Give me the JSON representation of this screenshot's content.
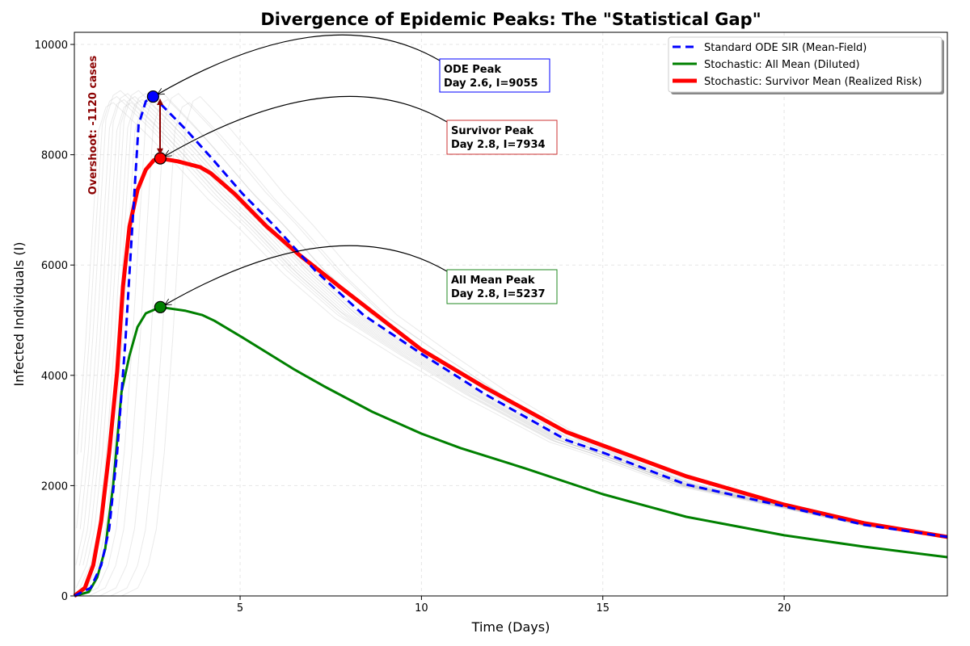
{
  "chart_data": {
    "type": "line",
    "title": "Divergence of Epidemic Peaks: The \"Statistical Gap\"",
    "xlabel": "Time (Days)",
    "ylabel": "Infected Individuals (I)",
    "xlim": [
      0.43,
      24.5
    ],
    "ylim": [
      0,
      10220
    ],
    "xticks": [
      5,
      10,
      15,
      20
    ],
    "yticks": [
      0,
      2000,
      4000,
      6000,
      8000,
      10000
    ],
    "grid": true,
    "legend_position": "top-right",
    "series": [
      {
        "name": "Standard ODE SIR (Mean-Field)",
        "color": "#0000ff",
        "style": "dashed",
        "x": [
          0.43,
          0.88,
          1.17,
          1.39,
          1.61,
          1.84,
          2.0,
          2.2,
          2.4,
          2.6,
          2.84,
          3.5,
          4.2,
          5.07,
          5.96,
          7.07,
          8.4,
          10,
          11.75,
          14,
          15,
          17.3,
          20,
          22.2,
          24.5
        ],
        "y": [
          0,
          146,
          556,
          1215,
          2600,
          4650,
          6400,
          8540,
          8970,
          9055,
          8900,
          8460,
          7950,
          7290,
          6700,
          5900,
          5095,
          4390,
          3660,
          2825,
          2600,
          2020,
          1625,
          1290,
          1070
        ]
      },
      {
        "name": "Stochastic: All Mean (Diluted)",
        "color": "#008000",
        "style": "solid",
        "x": [
          0.43,
          0.83,
          1.06,
          1.28,
          1.5,
          1.73,
          1.95,
          2.17,
          2.4,
          2.8,
          3.5,
          3.95,
          4.29,
          5.07,
          6.51,
          7.3,
          8.64,
          10,
          11.08,
          12.86,
          15,
          17.3,
          20,
          22.2,
          24.5
        ],
        "y": [
          0,
          73,
          337,
          850,
          2020,
          3700,
          4360,
          4875,
          5125,
          5237,
          5170,
          5095,
          4990,
          4685,
          4100,
          3807,
          3340,
          2943,
          2680,
          2313,
          1845,
          1435,
          1100,
          893,
          703
        ]
      },
      {
        "name": "Stochastic: Survivor Mean (Realized Risk)",
        "color": "#ff0000",
        "style": "solid-thick",
        "x": [
          0.43,
          0.72,
          0.95,
          1.17,
          1.39,
          1.61,
          1.77,
          1.95,
          2.17,
          2.4,
          2.62,
          2.8,
          3.28,
          3.9,
          4.2,
          4.85,
          5.73,
          6.62,
          7.74,
          10,
          11.75,
          14,
          17.3,
          20,
          22.2,
          24.5
        ],
        "y": [
          0,
          146,
          556,
          1360,
          2600,
          4070,
          5610,
          6700,
          7360,
          7730,
          7900,
          7934,
          7880,
          7775,
          7660,
          7290,
          6700,
          6190,
          5610,
          4465,
          3780,
          2970,
          2170,
          1655,
          1320,
          1070
        ]
      }
    ],
    "background_trajectory_peak_days": [
      1.5,
      1.6,
      1.7,
      1.8,
      1.9,
      2.0,
      2.1,
      2.2,
      2.3,
      2.4,
      2.5,
      2.6,
      2.8,
      3.0,
      3.3,
      3.6,
      3.9
    ],
    "annotations": [
      {
        "label": "ODE Peak",
        "detail": "Day 2.6, I=9055",
        "x": 2.6,
        "y": 9055,
        "color": "#0000ff",
        "border": "#0000ff"
      },
      {
        "label": "Survivor Peak",
        "detail": "Day 2.8, I=7934",
        "x": 2.8,
        "y": 7934,
        "color": "#ff0000",
        "border": "#cc3333"
      },
      {
        "label": "All Mean Peak",
        "detail": "Day 2.8, I=5237",
        "x": 2.8,
        "y": 5237,
        "color": "#008000",
        "border": "#228822"
      }
    ],
    "overshoot_label": "Overshoot: -1120 cases"
  }
}
